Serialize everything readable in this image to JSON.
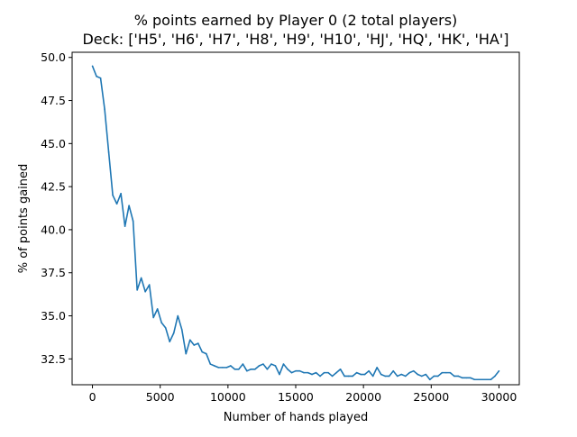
{
  "chart_data": {
    "type": "line",
    "title": "% points earned by Player 0 (2 total players)",
    "subtitle": "Deck: ['H5', 'H6', 'H7', 'H8', 'H9', 'H10', 'HJ', 'HQ', 'HK', 'HA']",
    "xlabel": "Number of hands played",
    "ylabel": "% of points gained",
    "xlim": [
      -1500,
      31500
    ],
    "ylim": [
      31.0,
      50.3
    ],
    "xticks": [
      0,
      5000,
      10000,
      15000,
      20000,
      25000,
      30000
    ],
    "yticks": [
      32.5,
      35.0,
      37.5,
      40.0,
      42.5,
      45.0,
      47.5,
      50.0
    ],
    "xtick_labels": [
      "0",
      "5000",
      "10000",
      "15000",
      "20000",
      "25000",
      "30000"
    ],
    "ytick_labels": [
      "32.5",
      "35.0",
      "37.5",
      "40.0",
      "42.5",
      "45.0",
      "47.5",
      "50.0"
    ],
    "grid": false,
    "line_color": "#1f77b4",
    "series": [
      {
        "x": [
          0,
          300,
          600,
          900,
          1200,
          1500,
          1800,
          2100,
          2400,
          2700,
          3000,
          3300,
          3600,
          3900,
          4200,
          4500,
          4800,
          5100,
          5400,
          5700,
          6000,
          6300,
          6600,
          6900,
          7200,
          7500,
          7800,
          8100,
          8400,
          8700,
          9000,
          9300,
          9600,
          9900,
          10200,
          10500,
          10800,
          11100,
          11400,
          11700,
          12000,
          12300,
          12600,
          12900,
          13200,
          13500,
          13800,
          14100,
          14400,
          14700,
          15000,
          15300,
          15600,
          15900,
          16200,
          16500,
          16800,
          17100,
          17400,
          17700,
          18000,
          18300,
          18600,
          18900,
          19200,
          19500,
          19800,
          20100,
          20400,
          20700,
          21000,
          21300,
          21600,
          21900,
          22200,
          22500,
          22800,
          23100,
          23400,
          23700,
          24000,
          24300,
          24600,
          24900,
          25200,
          25500,
          25800,
          26100,
          26400,
          26700,
          27000,
          27300,
          27600,
          27900,
          28200,
          28500,
          28800,
          29100,
          29400,
          29700,
          30000
        ],
        "values": [
          49.5,
          48.9,
          48.8,
          47.0,
          44.5,
          42.0,
          41.5,
          42.1,
          40.2,
          41.4,
          40.5,
          36.5,
          37.2,
          36.4,
          36.8,
          34.9,
          35.4,
          34.6,
          34.3,
          33.5,
          34.0,
          35.0,
          34.2,
          32.8,
          33.6,
          33.3,
          33.4,
          32.9,
          32.8,
          32.2,
          32.1,
          32.0,
          32.0,
          32.0,
          32.1,
          31.9,
          31.9,
          32.2,
          31.8,
          31.9,
          31.9,
          32.1,
          32.2,
          31.9,
          32.2,
          32.1,
          31.6,
          32.2,
          31.9,
          31.7,
          31.8,
          31.8,
          31.7,
          31.7,
          31.6,
          31.7,
          31.5,
          31.7,
          31.7,
          31.5,
          31.7,
          31.9,
          31.5,
          31.5,
          31.5,
          31.7,
          31.6,
          31.6,
          31.8,
          31.5,
          32.0,
          31.6,
          31.5,
          31.5,
          31.8,
          31.5,
          31.6,
          31.5,
          31.7,
          31.8,
          31.6,
          31.5,
          31.6,
          31.3,
          31.5,
          31.5,
          31.7,
          31.7,
          31.7,
          31.5,
          31.5,
          31.4,
          31.4,
          31.4,
          31.3,
          31.3,
          31.3,
          31.3,
          31.3,
          31.5,
          31.8
        ]
      }
    ]
  }
}
